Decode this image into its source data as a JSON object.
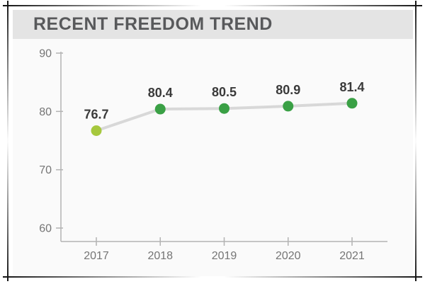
{
  "header": {
    "title": "RECENT FREEDOM TREND"
  },
  "chart_data": {
    "type": "line",
    "title": "RECENT FREEDOM TREND",
    "categories": [
      "2017",
      "2018",
      "2019",
      "2020",
      "2021"
    ],
    "values": [
      76.7,
      80.4,
      80.5,
      80.9,
      81.4
    ],
    "data_labels": [
      "76.7",
      "80.4",
      "80.5",
      "80.9",
      "81.4"
    ],
    "xlabel": "",
    "ylabel": "",
    "ylim": [
      60,
      90
    ],
    "yticks": [
      60,
      70,
      80,
      90
    ],
    "grid": false,
    "legend": false,
    "colors": {
      "line": "#d8d8d8",
      "point_first": "#a6c83d",
      "point_rest": "#3aa045",
      "axis": "#b3b3b3",
      "tick_label": "#757575",
      "value_label": "#3a3a3a"
    }
  },
  "theme": {
    "banner_bg": "#e4e4e4",
    "content_bg": "#fafafa",
    "title_color": "#58595b",
    "frame_color": "#141414"
  }
}
